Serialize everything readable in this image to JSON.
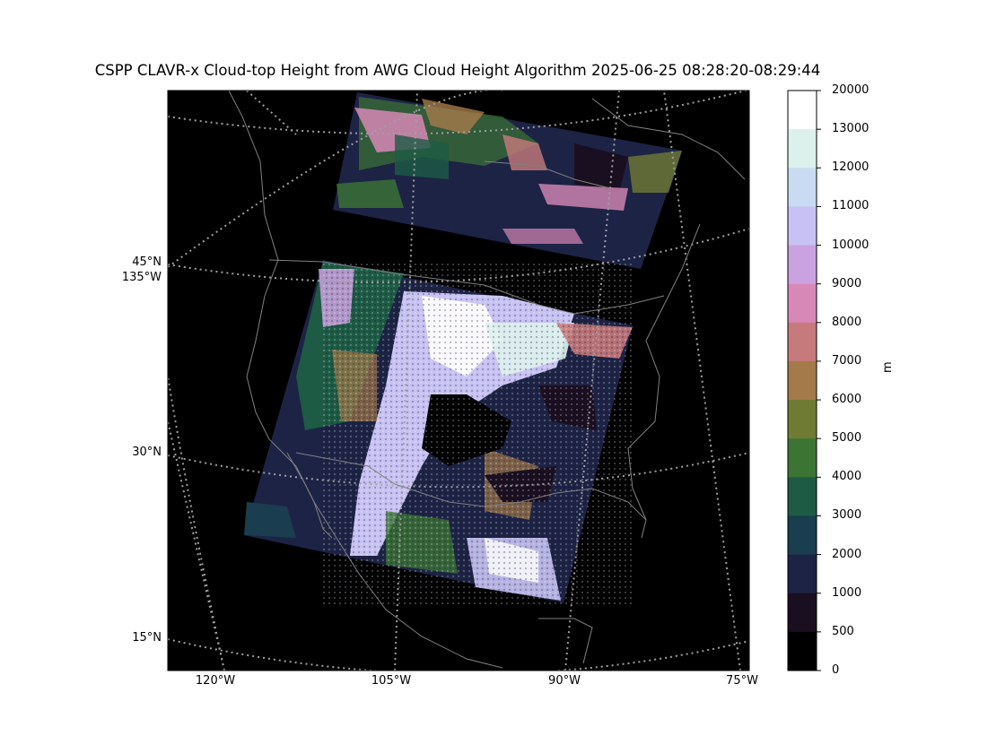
{
  "title": "CSPP CLAVR-x Cloud-top Height from AWG Cloud Height Algorithm 2025-06-25 08:28:20-08:29:44",
  "lat_labels": [
    "45°N",
    "135°W",
    "30°N",
    "15°N"
  ],
  "lon_labels": [
    "120°W",
    "105°W",
    "90°W",
    "75°W"
  ],
  "colorbar": {
    "unit": "m",
    "ticks": [
      "20000",
      "13000",
      "12000",
      "11000",
      "10000",
      "9000",
      "8000",
      "7000",
      "6000",
      "5000",
      "4000",
      "3000",
      "2000",
      "1000",
      "500",
      "0"
    ],
    "colors": [
      "#ffffff",
      "#dcf1ec",
      "#c8dbf2",
      "#c7c2f3",
      "#cba2e1",
      "#d788b6",
      "#c77a7b",
      "#a57a4a",
      "#6f7b33",
      "#3c7434",
      "#1d5b45",
      "#1a3d4f",
      "#1d2345",
      "#1a0f21",
      "#000000"
    ]
  },
  "colors": {
    "ocean_background": "#000000",
    "coastline": "#808080",
    "graticule": "#a0a0a0"
  }
}
